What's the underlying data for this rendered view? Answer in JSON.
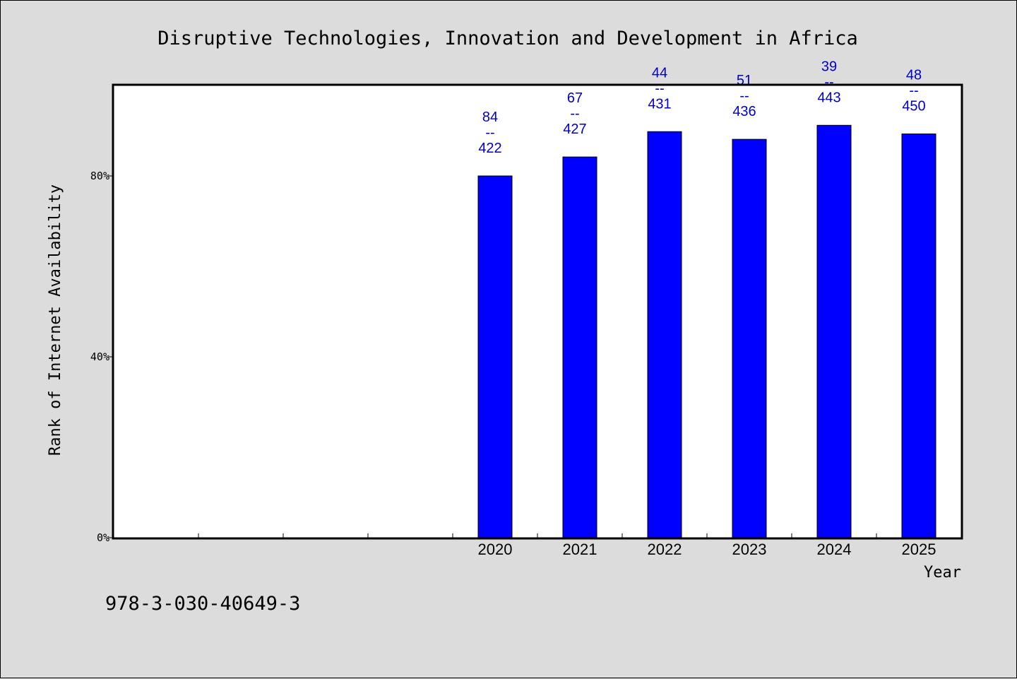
{
  "chart_data": {
    "type": "bar",
    "title": "Disruptive Technologies, Innovation and Development in Africa",
    "xlabel": "Year",
    "ylabel": "Rank of Internet Availability",
    "categories": [
      "",
      "",
      "",
      "",
      "2020",
      "2021",
      "2022",
      "2023",
      "2024",
      "2025"
    ],
    "values": [
      null,
      null,
      null,
      null,
      80.0,
      84.2,
      89.8,
      88.1,
      91.2,
      89.3
    ],
    "ylim": [
      0,
      100
    ],
    "yticks": [
      {
        "value": 0,
        "label": "0%"
      },
      {
        "value": 40,
        "label": "40%"
      },
      {
        "value": 80,
        "label": "80%"
      }
    ],
    "data_labels": [
      null,
      null,
      null,
      null,
      {
        "rank": "84",
        "sep": "--",
        "total": "422"
      },
      {
        "rank": "67",
        "sep": "--",
        "total": "427"
      },
      {
        "rank": "44",
        "sep": "--",
        "total": "431"
      },
      {
        "rank": "51",
        "sep": "--",
        "total": "436"
      },
      {
        "rank": "39",
        "sep": "--",
        "total": "443"
      },
      {
        "rank": "48",
        "sep": "--",
        "total": "450"
      }
    ],
    "bar_color": "#0000ff",
    "label_color": "#0000cc",
    "background_color": "#dcdcdc",
    "plot_background": "#ffffff",
    "grid": false,
    "legend": "none"
  },
  "footer": {
    "isbn": "978-3-030-40649-3"
  }
}
